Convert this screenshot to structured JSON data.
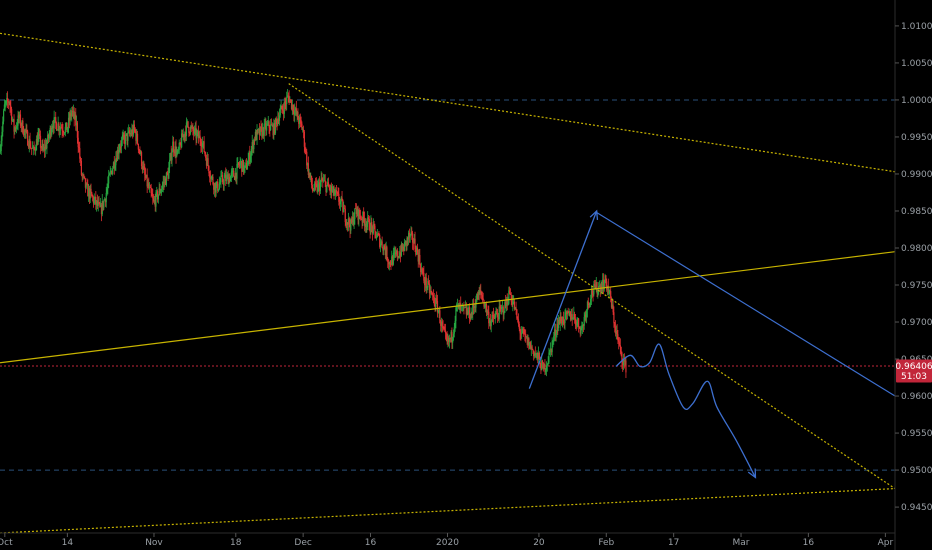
{
  "chart_data": {
    "type": "candlestick",
    "title": "",
    "grid": false,
    "x_axis": {
      "tick_labels": [
        "Oct",
        "14",
        "Nov",
        "18",
        "Dec",
        "16",
        "2020",
        "20",
        "Feb",
        "17",
        "Mar",
        "16",
        "Apr"
      ],
      "range": [
        "2019-09-30",
        "2020-04-03"
      ]
    },
    "y_axis": {
      "position": "right",
      "range": [
        0.9415,
        1.0135
      ],
      "tick_labels": [
        "1.01000",
        "1.00500",
        "1.00000",
        "0.99500",
        "0.99000",
        "0.98500",
        "0.98000",
        "0.97500",
        "0.97000",
        "0.96500",
        "0.96000",
        "0.95500",
        "0.95000",
        "0.94500"
      ]
    },
    "price_path": [
      [
        "2019-09-30",
        0.993
      ],
      [
        "2019-10-01",
        0.999
      ],
      [
        "2019-10-02",
        1.0
      ],
      [
        "2019-10-03",
        0.996
      ],
      [
        "2019-10-04",
        0.9975
      ],
      [
        "2019-10-07",
        0.993
      ],
      [
        "2019-10-08",
        0.995
      ],
      [
        "2019-10-09",
        0.993
      ],
      [
        "2019-10-10",
        0.9945
      ],
      [
        "2019-10-11",
        0.997
      ],
      [
        "2019-10-14",
        0.996
      ],
      [
        "2019-10-15",
        0.9985
      ],
      [
        "2019-10-16",
        0.9965
      ],
      [
        "2019-10-17",
        0.99
      ],
      [
        "2019-10-18",
        0.988
      ],
      [
        "2019-10-21",
        0.985
      ],
      [
        "2019-10-22",
        0.987
      ],
      [
        "2019-10-23",
        0.99
      ],
      [
        "2019-10-24",
        0.992
      ],
      [
        "2019-10-25",
        0.994
      ],
      [
        "2019-10-28",
        0.996
      ],
      [
        "2019-10-29",
        0.9935
      ],
      [
        "2019-10-30",
        0.99
      ],
      [
        "2019-10-31",
        0.988
      ],
      [
        "2019-11-01",
        0.986
      ],
      [
        "2019-11-04",
        0.99
      ],
      [
        "2019-11-05",
        0.994
      ],
      [
        "2019-11-06",
        0.9925
      ],
      [
        "2019-11-07",
        0.995
      ],
      [
        "2019-11-08",
        0.9965
      ],
      [
        "2019-11-11",
        0.9945
      ],
      [
        "2019-11-12",
        0.992
      ],
      [
        "2019-11-13",
        0.9895
      ],
      [
        "2019-11-14",
        0.988
      ],
      [
        "2019-11-15",
        0.989
      ],
      [
        "2019-11-18",
        0.99
      ],
      [
        "2019-11-19",
        0.9915
      ],
      [
        "2019-11-20",
        0.9905
      ],
      [
        "2019-11-21",
        0.9925
      ],
      [
        "2019-11-22",
        0.995
      ],
      [
        "2019-11-25",
        0.9965
      ],
      [
        "2019-11-26",
        0.996
      ],
      [
        "2019-11-27",
        0.998
      ],
      [
        "2019-11-28",
        0.999
      ],
      [
        "2019-11-29",
        1.0005
      ],
      [
        "2019-12-02",
        0.996
      ],
      [
        "2019-12-03",
        0.991
      ],
      [
        "2019-12-04",
        0.988
      ],
      [
        "2019-12-05",
        0.988
      ],
      [
        "2019-12-06",
        0.989
      ],
      [
        "2019-12-09",
        0.987
      ],
      [
        "2019-12-10",
        0.986
      ],
      [
        "2019-12-11",
        0.984
      ],
      [
        "2019-12-12",
        0.983
      ],
      [
        "2019-12-13",
        0.985
      ],
      [
        "2019-12-16",
        0.983
      ],
      [
        "2019-12-17",
        0.982
      ],
      [
        "2019-12-18",
        0.981
      ],
      [
        "2019-12-19",
        0.98
      ],
      [
        "2019-12-20",
        0.978
      ],
      [
        "2019-12-23",
        0.98
      ],
      [
        "2019-12-24",
        0.9815
      ],
      [
        "2019-12-25",
        0.981
      ],
      [
        "2019-12-26",
        0.979
      ],
      [
        "2019-12-27",
        0.976
      ],
      [
        "2019-12-30",
        0.972
      ],
      [
        "2019-12-31",
        0.969
      ],
      [
        "2020-01-01",
        0.967
      ],
      [
        "2020-01-02",
        0.968
      ],
      [
        "2020-01-03",
        0.972
      ],
      [
        "2020-01-06",
        0.971
      ],
      [
        "2020-01-07",
        0.973
      ],
      [
        "2020-01-08",
        0.974
      ],
      [
        "2020-01-09",
        0.972
      ],
      [
        "2020-01-10",
        0.97
      ],
      [
        "2020-01-13",
        0.972
      ],
      [
        "2020-01-14",
        0.974
      ],
      [
        "2020-01-15",
        0.972
      ],
      [
        "2020-01-16",
        0.969
      ],
      [
        "2020-01-17",
        0.968
      ],
      [
        "2020-01-20",
        0.965
      ],
      [
        "2020-01-21",
        0.9635
      ],
      [
        "2020-01-22",
        0.965
      ],
      [
        "2020-01-23",
        0.9675
      ],
      [
        "2020-01-24",
        0.97
      ],
      [
        "2020-01-27",
        0.971
      ],
      [
        "2020-01-28",
        0.97
      ],
      [
        "2020-01-29",
        0.969
      ],
      [
        "2020-01-30",
        0.972
      ],
      [
        "2020-01-31",
        0.974
      ],
      [
        "2020-02-03",
        0.9755
      ],
      [
        "2020-02-04",
        0.973
      ],
      [
        "2020-02-05",
        0.969
      ],
      [
        "2020-02-06",
        0.966
      ],
      [
        "2020-02-07",
        0.964
      ]
    ],
    "horizontal_lines": [
      {
        "value": 1.0,
        "style": "dashed",
        "color": "#2a4f7a"
      },
      {
        "value": 0.95,
        "style": "dashed",
        "color": "#2a4f7a"
      },
      {
        "value": 0.96406,
        "style": "dotted",
        "color": "#c2263a"
      }
    ],
    "trendlines": [
      {
        "from": [
          "2019-09-30",
          1.009
        ],
        "to": [
          "2020-04-03",
          0.9903
        ],
        "style": "dotted",
        "color": "#c8b400"
      },
      {
        "from": [
          "2019-11-29",
          1.0022
        ],
        "to": [
          "2020-04-03",
          0.9475
        ],
        "style": "dotted",
        "color": "#c8b400"
      },
      {
        "from": [
          "2019-09-30",
          0.9645
        ],
        "to": [
          "2020-04-03",
          0.9795
        ],
        "style": "solid",
        "color": "#c8b400"
      },
      {
        "from": [
          "2019-09-30",
          0.9415
        ],
        "to": [
          "2020-04-03",
          0.9475
        ],
        "style": "dotted",
        "color": "#c8b400"
      },
      {
        "from": [
          "2020-02-01",
          0.9848
        ],
        "to": [
          "2020-04-03",
          0.96
        ],
        "style": "solid",
        "color": "#3d6fcf"
      }
    ],
    "arrows": [
      {
        "from": [
          "2020-01-18",
          0.961
        ],
        "to": [
          "2020-02-01",
          0.985
        ],
        "color": "#3d6fcf"
      }
    ],
    "projection_path": {
      "color": "#3d6fcf",
      "points": [
        [
          "2020-02-05",
          0.964
        ],
        [
          "2020-02-08",
          0.9655
        ],
        [
          "2020-02-10",
          0.964
        ],
        [
          "2020-02-12",
          0.9645
        ],
        [
          "2020-02-14",
          0.967
        ],
        [
          "2020-02-16",
          0.963
        ],
        [
          "2020-02-19",
          0.9585
        ],
        [
          "2020-02-21",
          0.959
        ],
        [
          "2020-02-24",
          0.962
        ],
        [
          "2020-02-26",
          0.9585
        ],
        [
          "2020-03-01",
          0.954
        ],
        [
          "2020-03-05",
          0.949
        ]
      ]
    },
    "last_price": {
      "label": "0.96406",
      "value": 0.96406,
      "color": "#c2263a"
    },
    "countdown": {
      "label": "51:03",
      "value": 0.9627,
      "color": "#c2263a"
    },
    "up_color": "#26a641",
    "down_color": "#e03131"
  }
}
